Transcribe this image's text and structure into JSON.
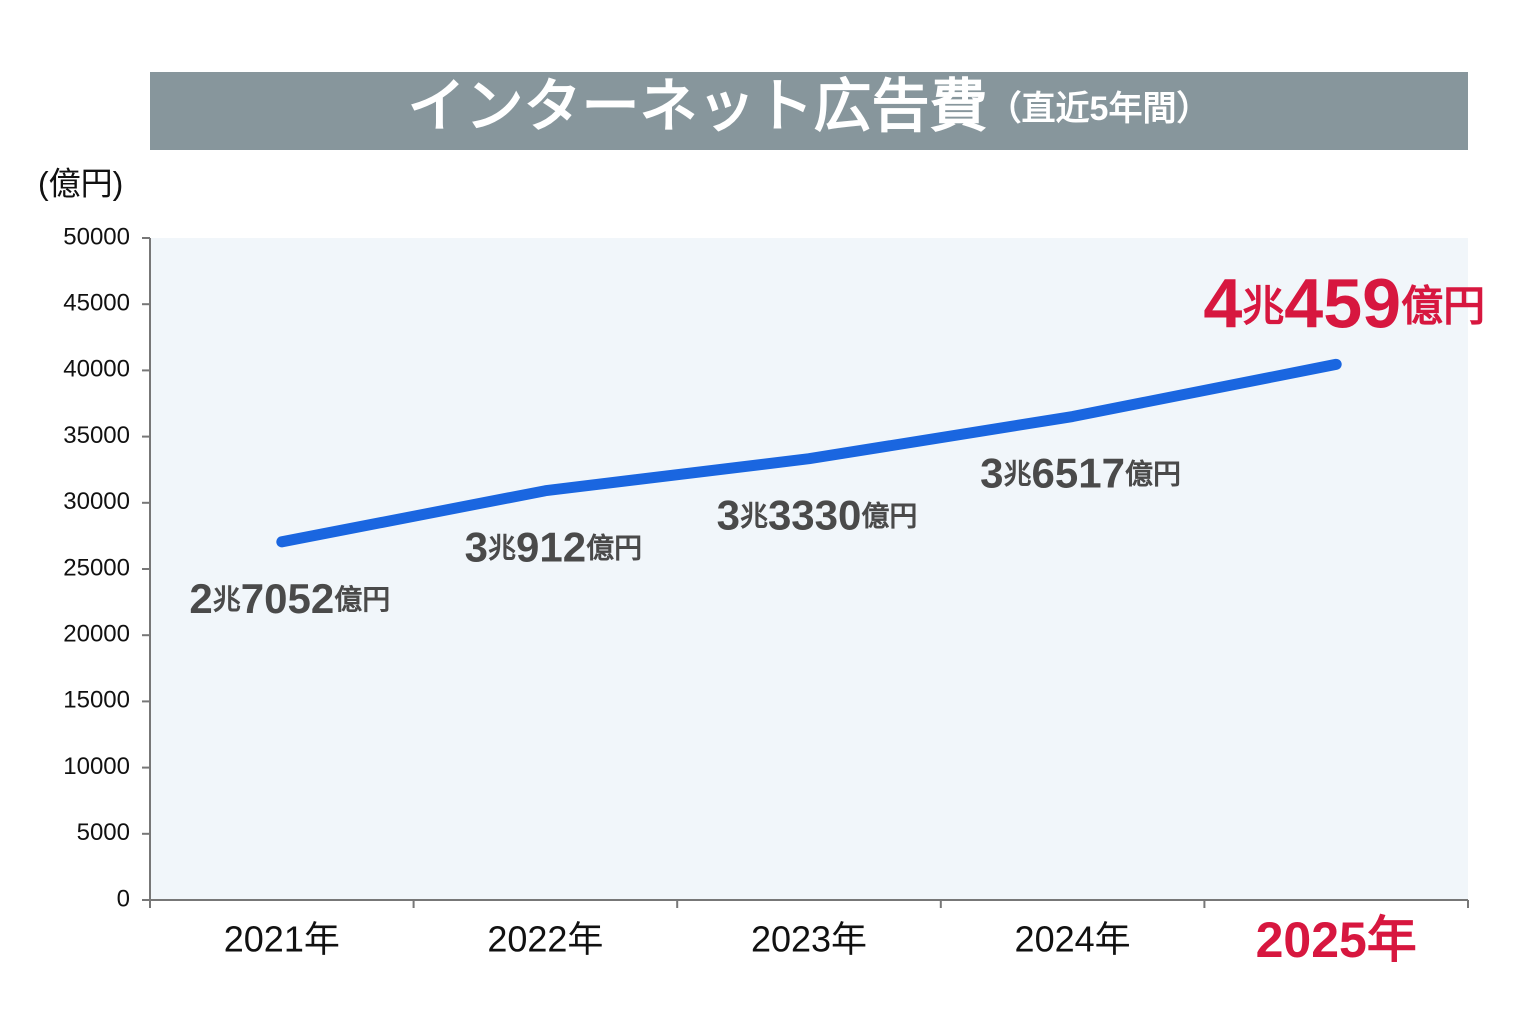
{
  "chart_data": {
    "type": "line",
    "title": "インターネット広告費",
    "subtitle": "（直近5年間）",
    "y_label": "(億円)",
    "categories": [
      "2021年",
      "2022年",
      "2023年",
      "2024年",
      "2025年"
    ],
    "series": [
      {
        "name": "インターネット広告費",
        "color": "#1a66e0",
        "values": [
          27052,
          30912,
          33330,
          36517,
          40459
        ],
        "value_labels": [
          "2兆7052億円",
          "3兆912億円",
          "3兆3330億円",
          "3兆6517億円",
          "4兆459億円"
        ]
      }
    ],
    "highlight_color": "#d7173f",
    "ylim": [
      0,
      50000
    ],
    "yticks": [
      0,
      5000,
      10000,
      15000,
      20000,
      25000,
      30000,
      35000,
      40000,
      45000,
      50000
    ]
  }
}
